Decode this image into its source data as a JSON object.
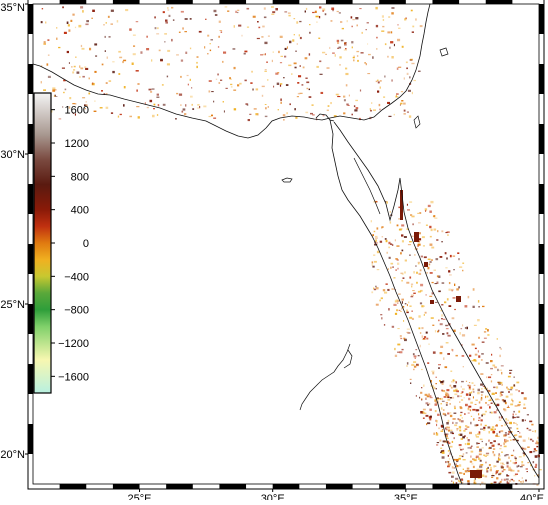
{
  "map": {
    "lon_range": [
      21,
      40
    ],
    "lat_range": [
      19,
      35
    ],
    "x_ticks": [
      {
        "lon": 25,
        "label": "25°E"
      },
      {
        "lon": 30,
        "label": "30°E"
      },
      {
        "lon": 35,
        "label": "35°E"
      },
      {
        "lon": 40,
        "label": "40°E"
      }
    ],
    "y_ticks": [
      {
        "lat": 20,
        "label": "20°N"
      },
      {
        "lat": 25,
        "label": "25°N"
      },
      {
        "lat": 30,
        "label": "30°N"
      },
      {
        "lat": 35,
        "label": "35°N"
      }
    ],
    "coastline_color": "#111111",
    "frame_colors": [
      "#000000",
      "#ffffff"
    ]
  },
  "colorbar": {
    "range": [
      -1800,
      1800
    ],
    "tick_labels": [
      "1600",
      "1200",
      "800",
      "400",
      "0",
      "−400",
      "−800",
      "−1200",
      "−1600"
    ],
    "tick_values": [
      1600,
      1200,
      800,
      400,
      0,
      -400,
      -800,
      -1200,
      -1600
    ],
    "color_stops": [
      {
        "v": -1800,
        "c": "#b8f0e0"
      },
      {
        "v": -1400,
        "c": "#f7f7b0"
      },
      {
        "v": -1000,
        "c": "#7fd06a"
      },
      {
        "v": -800,
        "c": "#2e9e3a"
      },
      {
        "v": -600,
        "c": "#5aa83a"
      },
      {
        "v": -400,
        "c": "#c8c830"
      },
      {
        "v": -200,
        "c": "#f0b020"
      },
      {
        "v": 0,
        "c": "#e07a10"
      },
      {
        "v": 200,
        "c": "#c03010"
      },
      {
        "v": 400,
        "c": "#8a1a08"
      },
      {
        "v": 700,
        "c": "#5a1a10"
      },
      {
        "v": 1000,
        "c": "#7a4a40"
      },
      {
        "v": 1300,
        "c": "#a89890"
      },
      {
        "v": 1800,
        "c": "#f4f4f4"
      }
    ]
  }
}
